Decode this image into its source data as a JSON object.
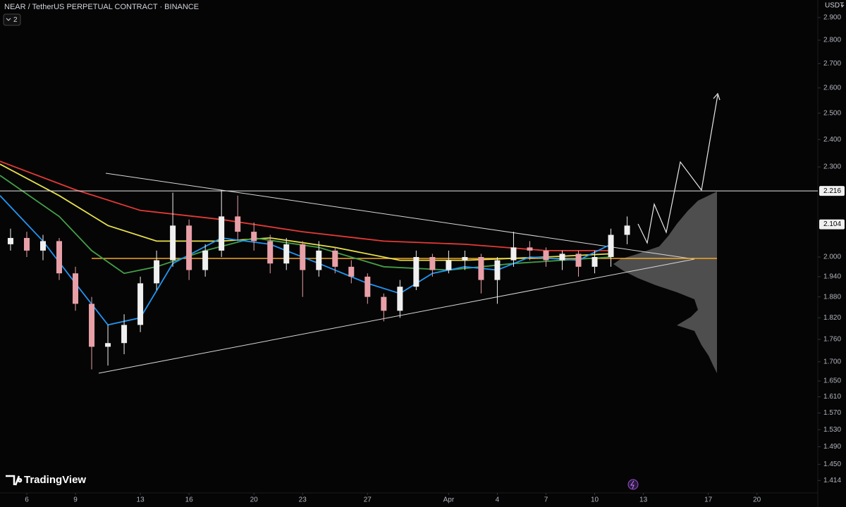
{
  "chart_data": {
    "type": "candlestick",
    "title": "NEAR / TetherUS PERPETUAL CONTRACT · BINANCE",
    "badge": "2",
    "currency": "USDT",
    "brand": "TradingView",
    "log_scale": true,
    "up_color": "#f0f0f0",
    "down_color": "#e8a0a8",
    "x": [
      -1,
      0,
      1,
      2,
      3,
      4,
      5,
      6,
      7,
      8,
      9,
      10,
      11,
      12,
      13,
      14,
      15,
      16,
      17,
      18,
      19,
      20,
      21,
      22,
      23,
      24,
      25,
      26,
      27,
      28,
      29,
      30,
      31,
      32,
      33,
      34,
      35,
      36,
      37
    ],
    "open": [
      2.04,
      2.06,
      2.02,
      2.05,
      1.95,
      1.86,
      1.74,
      1.75,
      1.8,
      1.92,
      1.99,
      2.1,
      1.96,
      2.02,
      2.13,
      2.08,
      2.05,
      1.98,
      2.04,
      1.96,
      2.02,
      1.97,
      1.94,
      1.88,
      1.84,
      1.91,
      2.0,
      1.96,
      1.99,
      2.0,
      1.93,
      1.99,
      2.03,
      2.02,
      1.99,
      2.01,
      1.97,
      2.0,
      2.07
    ],
    "high": [
      2.09,
      2.08,
      2.07,
      2.06,
      1.97,
      1.88,
      1.8,
      1.83,
      1.94,
      2.02,
      2.21,
      2.12,
      2.04,
      2.22,
      2.2,
      2.11,
      2.07,
      2.06,
      2.05,
      2.05,
      2.03,
      1.99,
      1.95,
      1.89,
      1.93,
      2.02,
      2.01,
      2.02,
      2.02,
      2.01,
      2.0,
      2.08,
      2.05,
      2.03,
      2.02,
      2.02,
      2.02,
      2.09,
      2.13
    ],
    "low": [
      2.02,
      2.0,
      1.99,
      1.93,
      1.84,
      1.68,
      1.69,
      1.72,
      1.78,
      1.9,
      1.97,
      1.93,
      1.94,
      2.0,
      2.05,
      2.02,
      1.95,
      1.96,
      1.88,
      1.94,
      1.95,
      1.92,
      1.86,
      1.81,
      1.82,
      1.9,
      1.94,
      1.95,
      1.96,
      1.89,
      1.86,
      1.97,
      1.99,
      1.97,
      1.96,
      1.94,
      1.95,
      1.97,
      2.04
    ],
    "close": [
      2.06,
      2.02,
      2.05,
      1.95,
      1.86,
      1.74,
      1.75,
      1.8,
      1.92,
      1.99,
      2.1,
      1.96,
      2.02,
      2.13,
      2.08,
      2.05,
      1.98,
      2.04,
      1.96,
      2.02,
      1.97,
      1.94,
      1.88,
      1.84,
      1.91,
      2.0,
      1.96,
      1.99,
      2.0,
      1.93,
      1.99,
      2.03,
      2.02,
      1.99,
      2.01,
      1.97,
      2.0,
      2.07,
      2.1
    ],
    "overlays": [
      {
        "color": "#e53935",
        "x": [
          -1.65,
          3,
          7,
          12,
          17,
          22,
          27,
          32,
          36
        ],
        "values": [
          2.32,
          2.22,
          2.15,
          2.12,
          2.08,
          2.05,
          2.04,
          2.02,
          2.02
        ]
      },
      {
        "color": "#e6e04a",
        "x": [
          -1.65,
          2,
          5,
          8,
          12,
          15,
          19,
          23,
          27,
          32,
          36
        ],
        "values": [
          2.31,
          2.2,
          2.1,
          2.05,
          2.05,
          2.06,
          2.03,
          1.99,
          1.99,
          2.0,
          2.01
        ]
      },
      {
        "color": "#43a047",
        "x": [
          -1.65,
          2,
          4,
          6,
          8,
          11,
          14,
          18,
          22,
          26,
          30,
          33,
          36
        ],
        "values": [
          2.27,
          2.13,
          2.02,
          1.95,
          1.97,
          2.02,
          2.06,
          2.03,
          1.97,
          1.96,
          1.98,
          1.99,
          2.0
        ]
      },
      {
        "color": "#2196f3",
        "x": [
          -1.65,
          1,
          3,
          5,
          7,
          9,
          12,
          15,
          18,
          21,
          23,
          25,
          27,
          29,
          31,
          34,
          36
        ],
        "values": [
          2.2,
          2.05,
          1.92,
          1.8,
          1.82,
          1.98,
          2.06,
          2.04,
          1.98,
          1.92,
          1.89,
          1.95,
          1.97,
          1.96,
          2.0,
          1.99,
          2.04
        ]
      }
    ],
    "xlim": [
      -1.65,
      48.75
    ],
    "xticks": [
      {
        "value": 0,
        "label": "6"
      },
      {
        "value": 3,
        "label": "9"
      },
      {
        "value": 7,
        "label": "13"
      },
      {
        "value": 10,
        "label": "16"
      },
      {
        "value": 14,
        "label": "20"
      },
      {
        "value": 17,
        "label": "23"
      },
      {
        "value": 21,
        "label": "27"
      },
      {
        "value": 26,
        "label": "Apr"
      },
      {
        "value": 29,
        "label": "4"
      },
      {
        "value": 32,
        "label": "7"
      },
      {
        "value": 35,
        "label": "10"
      },
      {
        "value": 38,
        "label": "13"
      },
      {
        "value": 42,
        "label": "17"
      },
      {
        "value": 45,
        "label": "20"
      }
    ],
    "ylim": [
      1.387,
      2.98
    ],
    "yticks": [
      {
        "value": 2.9,
        "label": "2.900"
      },
      {
        "value": 2.8,
        "label": "2.800"
      },
      {
        "value": 2.7,
        "label": "2.700"
      },
      {
        "value": 2.6,
        "label": "2.600"
      },
      {
        "value": 2.5,
        "label": "2.500"
      },
      {
        "value": 2.4,
        "label": "2.400"
      },
      {
        "value": 2.3,
        "label": "2.300"
      },
      {
        "value": 2.0,
        "label": "2.000"
      },
      {
        "value": 1.94,
        "label": "1.940"
      },
      {
        "value": 1.88,
        "label": "1.880"
      },
      {
        "value": 1.82,
        "label": "1.820"
      },
      {
        "value": 1.76,
        "label": "1.760"
      },
      {
        "value": 1.7,
        "label": "1.700"
      },
      {
        "value": 1.65,
        "label": "1.650"
      },
      {
        "value": 1.61,
        "label": "1.610"
      },
      {
        "value": 1.57,
        "label": "1.570"
      },
      {
        "value": 1.53,
        "label": "1.530"
      },
      {
        "value": 1.49,
        "label": "1.490"
      },
      {
        "value": 1.45,
        "label": "1.450"
      },
      {
        "value": 1.414,
        "label": "1.414"
      }
    ],
    "price_labels": [
      {
        "value": 2.216,
        "label": "2.216"
      },
      {
        "value": 2.104,
        "label": "2.104"
      }
    ]
  }
}
